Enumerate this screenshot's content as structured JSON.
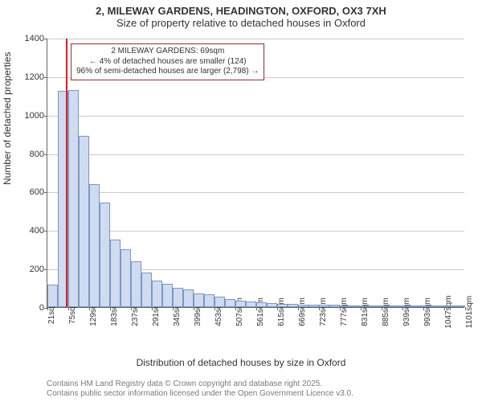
{
  "title": {
    "line1": "2, MILEWAY GARDENS, HEADINGTON, OXFORD, OX3 7XH",
    "line2": "Size of property relative to detached houses in Oxford",
    "fontsize": 13,
    "color": "#333333"
  },
  "axes": {
    "ylabel": "Number of detached properties",
    "xlabel": "Distribution of detached houses by size in Oxford",
    "label_fontsize": 12,
    "ylim_min": 0,
    "ylim_max": 1400,
    "ytick_step": 200,
    "x_domain_min": 21,
    "x_domain_max": 1100,
    "x_tick_start": 21,
    "x_tick_step": 54,
    "x_tick_unit": "sqm",
    "grid_color": "#cccccc",
    "axis_color": "#666666",
    "tick_fontsize": 11
  },
  "chart": {
    "type": "histogram",
    "bar_fill": "#cfdcef",
    "bar_border": "#7a97c9",
    "background_color": "#ffffff",
    "bin_start": 21,
    "bin_width": 27,
    "values": [
      115,
      1125,
      1130,
      890,
      640,
      545,
      350,
      300,
      240,
      180,
      140,
      120,
      100,
      90,
      70,
      65,
      55,
      42,
      35,
      30,
      24,
      22,
      15,
      15,
      14,
      12,
      12,
      12,
      10,
      10,
      10,
      10,
      8,
      8,
      8,
      6,
      6,
      6,
      6,
      6
    ]
  },
  "reference": {
    "value_sqm": 69,
    "line_color": "#dd2222",
    "line_width": 2,
    "box": {
      "line1": "2 MILEWAY GARDENS: 69sqm",
      "line2": "← 4% of detached houses are smaller (124)",
      "line3": "96% of semi-detached houses are larger (2,798) →",
      "border_color": "#dd2222",
      "background": "#ffffff",
      "fontsize": 10
    }
  },
  "footer": {
    "line1": "Contains HM Land Registry data © Crown copyright and database right 2025.",
    "line2": "Contains public sector information licensed under the Open Government Licence v3.0.",
    "fontsize": 10,
    "color": "#7a7a7a"
  }
}
